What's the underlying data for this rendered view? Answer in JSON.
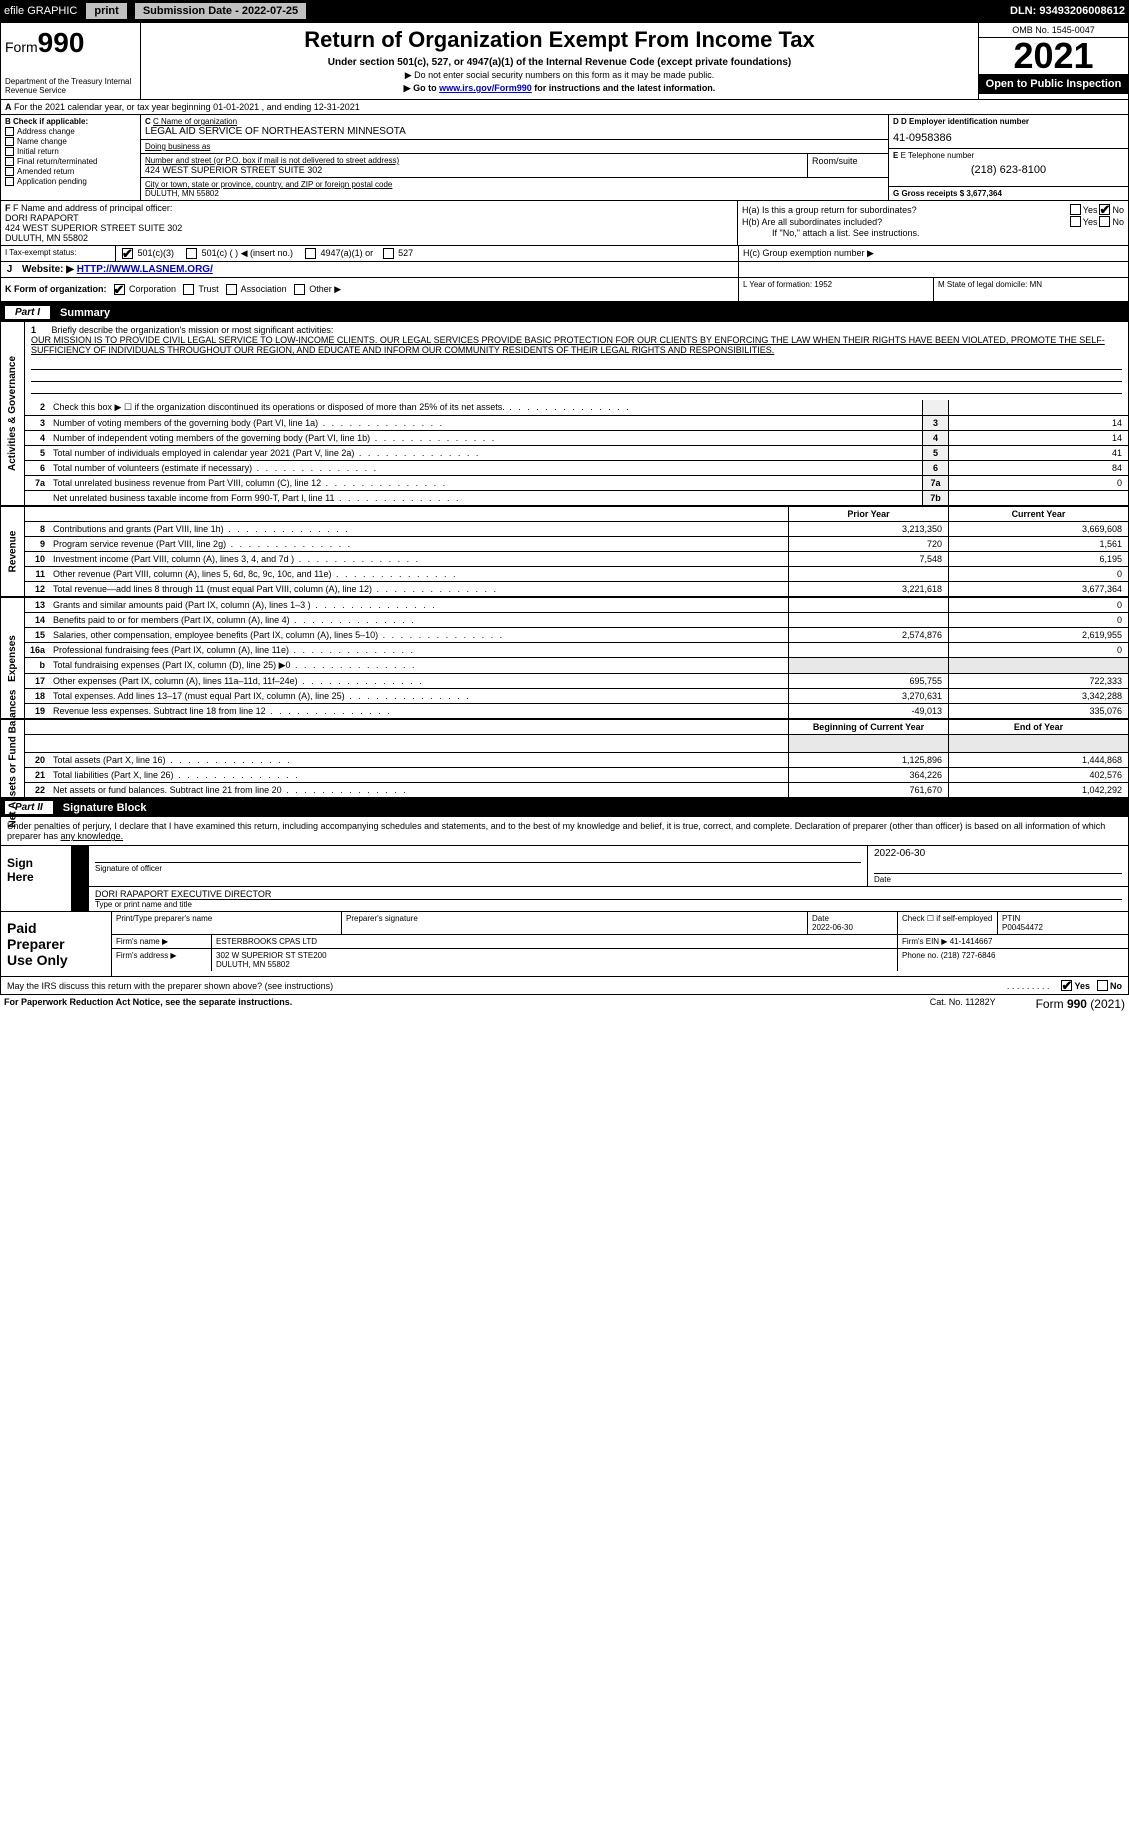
{
  "topbar": {
    "efile": "efile GRAPHIC",
    "print": "print",
    "subdate_lbl": "Submission Date - 2022-07-25",
    "dln": "DLN: 93493206008612"
  },
  "header": {
    "form": "Form",
    "num": "990",
    "dept": "Department of the Treasury Internal Revenue Service",
    "title": "Return of Organization Exempt From Income Tax",
    "sub1": "Under section 501(c), 527, or 4947(a)(1) of the Internal Revenue Code (except private foundations)",
    "sub2": "▶ Do not enter social security numbers on this form as it may be made public.",
    "sub3_pre": "▶ Go to ",
    "sub3_link": "www.irs.gov/Form990",
    "sub3_post": " for instructions and the latest information.",
    "omb": "OMB No. 1545-0047",
    "year": "2021",
    "open": "Open to Public Inspection"
  },
  "calyear": {
    "a": "A",
    "txt": "For the 2021 calendar year, or tax year beginning 01-01-2021    , and ending 12-31-2021"
  },
  "block_b": {
    "lbl": "B Check if applicable:",
    "items": [
      "Address change",
      "Name change",
      "Initial return",
      "Final return/terminated",
      "Amended return",
      "Application pending"
    ]
  },
  "block_c": {
    "c_lbl": "C Name of organization",
    "org": "LEGAL AID SERVICE OF NORTHEASTERN MINNESOTA",
    "dba_lbl": "Doing business as",
    "addr_lbl": "Number and street (or P.O. box if mail is not delivered to street address)",
    "room_lbl": "Room/suite",
    "addr": "424 WEST SUPERIOR STREET SUITE 302",
    "city_lbl": "City or town, state or province, country, and ZIP or foreign postal code",
    "city": "DULUTH, MN  55802"
  },
  "block_d": {
    "d_lbl": "D Employer identification number",
    "ein": "41-0958386",
    "e_lbl": "E Telephone number",
    "tel": "(218) 623-8100",
    "g_lbl": "G Gross receipts $ 3,677,364"
  },
  "block_f": {
    "f_lbl": "F Name and address of principal officer:",
    "name": "DORI RAPAPORT",
    "addr1": "424 WEST SUPERIOR STREET SUITE 302",
    "addr2": "DULUTH, MN  55802"
  },
  "block_h": {
    "ha": "H(a)  Is this a group return for subordinates?",
    "hb": "H(b)  Are all subordinates included?",
    "hb2": "If \"No,\" attach a list. See instructions.",
    "hc": "H(c)  Group exemption number ▶",
    "yes": "Yes",
    "no": "No"
  },
  "row_i": {
    "lbl": "I   Tax-exempt status:",
    "opts": [
      "501(c)(3)",
      "501(c) (   ) ◀ (insert no.)",
      "4947(a)(1) or",
      "527"
    ]
  },
  "row_j": {
    "lbl": "J",
    "site_lbl": "Website: ▶",
    "site": "HTTP://WWW.LASNEM.ORG/"
  },
  "row_k": {
    "lbl": "K Form of organization:",
    "opts": [
      "Corporation",
      "Trust",
      "Association",
      "Other ▶"
    ],
    "l": "L Year of formation: 1952",
    "m": "M State of legal domicile: MN"
  },
  "part1": {
    "part": "Part I",
    "title": "Summary"
  },
  "mission": {
    "num": "1",
    "lbl": "Briefly describe the organization's mission or most significant activities:",
    "txt": "OUR MISSION IS TO PROVIDE CIVIL LEGAL SERVICE TO LOW-INCOME CLIENTS. OUR LEGAL SERVICES PROVIDE BASIC PROTECTION FOR OUR CLIENTS BY ENFORCING THE LAW WHEN THEIR RIGHTS HAVE BEEN VIOLATED, PROMOTE THE SELF-SUFFICIENCY OF INDIVIDUALS THROUGHOUT OUR REGION, AND EDUCATE AND INFORM OUR COMMUNITY RESIDENTS OF THEIR LEGAL RIGHTS AND RESPONSIBILITIES."
  },
  "vtabs": {
    "gov": "Activities & Governance",
    "rev": "Revenue",
    "exp": "Expenses",
    "net": "Net Assets or Fund Balances"
  },
  "lines_single": [
    {
      "n": "2",
      "lbl": "Check this box ▶ ☐  if the organization discontinued its operations or disposed of more than 25% of its net assets.",
      "sm": "",
      "val": ""
    },
    {
      "n": "3",
      "lbl": "Number of voting members of the governing body (Part VI, line 1a)",
      "sm": "3",
      "val": "14"
    },
    {
      "n": "4",
      "lbl": "Number of independent voting members of the governing body (Part VI, line 1b)",
      "sm": "4",
      "val": "14"
    },
    {
      "n": "5",
      "lbl": "Total number of individuals employed in calendar year 2021 (Part V, line 2a)",
      "sm": "5",
      "val": "41"
    },
    {
      "n": "6",
      "lbl": "Total number of volunteers (estimate if necessary)",
      "sm": "6",
      "val": "84"
    },
    {
      "n": "7a",
      "lbl": "Total unrelated business revenue from Part VIII, column (C), line 12",
      "sm": "7a",
      "val": "0"
    },
    {
      "n": "",
      "lbl": "Net unrelated business taxable income from Form 990-T, Part I, line 11",
      "sm": "7b",
      "val": ""
    }
  ],
  "hdr_prior": "Prior Year",
  "hdr_curr": "Current Year",
  "lines_rev": [
    {
      "n": "8",
      "lbl": "Contributions and grants (Part VIII, line 1h)",
      "p": "3,213,350",
      "c": "3,669,608"
    },
    {
      "n": "9",
      "lbl": "Program service revenue (Part VIII, line 2g)",
      "p": "720",
      "c": "1,561"
    },
    {
      "n": "10",
      "lbl": "Investment income (Part VIII, column (A), lines 3, 4, and 7d )",
      "p": "7,548",
      "c": "6,195"
    },
    {
      "n": "11",
      "lbl": "Other revenue (Part VIII, column (A), lines 5, 6d, 8c, 9c, 10c, and 11e)",
      "p": "",
      "c": "0"
    },
    {
      "n": "12",
      "lbl": "Total revenue—add lines 8 through 11 (must equal Part VIII, column (A), line 12)",
      "p": "3,221,618",
      "c": "3,677,364"
    }
  ],
  "lines_exp": [
    {
      "n": "13",
      "lbl": "Grants and similar amounts paid (Part IX, column (A), lines 1–3 )",
      "p": "",
      "c": "0"
    },
    {
      "n": "14",
      "lbl": "Benefits paid to or for members (Part IX, column (A), line 4)",
      "p": "",
      "c": "0"
    },
    {
      "n": "15",
      "lbl": "Salaries, other compensation, employee benefits (Part IX, column (A), lines 5–10)",
      "p": "2,574,876",
      "c": "2,619,955"
    },
    {
      "n": "16a",
      "lbl": "Professional fundraising fees (Part IX, column (A), line 11e)",
      "p": "",
      "c": "0"
    },
    {
      "n": "b",
      "lbl": "Total fundraising expenses (Part IX, column (D), line 25) ▶0",
      "p": "__shade__",
      "c": "__shade__"
    },
    {
      "n": "17",
      "lbl": "Other expenses (Part IX, column (A), lines 11a–11d, 11f–24e)",
      "p": "695,755",
      "c": "722,333"
    },
    {
      "n": "18",
      "lbl": "Total expenses. Add lines 13–17 (must equal Part IX, column (A), line 25)",
      "p": "3,270,631",
      "c": "3,342,288"
    },
    {
      "n": "19",
      "lbl": "Revenue less expenses. Subtract line 18 from line 12",
      "p": "-49,013",
      "c": "335,076"
    }
  ],
  "hdr_beg": "Beginning of Current Year",
  "hdr_end": "End of Year",
  "lines_net": [
    {
      "n": "20",
      "lbl": "Total assets (Part X, line 16)",
      "p": "1,125,896",
      "c": "1,444,868"
    },
    {
      "n": "21",
      "lbl": "Total liabilities (Part X, line 26)",
      "p": "364,226",
      "c": "402,576"
    },
    {
      "n": "22",
      "lbl": "Net assets or fund balances. Subtract line 21 from line 20",
      "p": "761,670",
      "c": "1,042,292"
    }
  ],
  "part2": {
    "part": "Part II",
    "title": "Signature Block"
  },
  "sig": {
    "intro": "Under penalties of perjury, I declare that I have examined this return, including accompanying schedules and statements, and to the best of my knowledge and belief, it is true, correct, and complete. Declaration of preparer (other than officer) is based on all information of which preparer has ",
    "intro_u": "any knowledge.",
    "sign": "Sign",
    "here": "Here",
    "sig_lbl": "Signature of officer",
    "date_lbl": "Date",
    "date": "2022-06-30",
    "name": "DORI RAPAPORT  EXECUTIVE DIRECTOR",
    "name_lbl": "Type or print name and title"
  },
  "paid": {
    "title1": "Paid",
    "title2": "Preparer",
    "title3": "Use Only",
    "h_name": "Print/Type preparer's name",
    "h_sig": "Preparer's signature",
    "h_date": "Date",
    "date": "2022-06-30",
    "h_chk": "Check ☐ if self-employed",
    "h_ptin": "PTIN",
    "ptin": "P00454472",
    "firm_name_lbl": "Firm's name    ▶",
    "firm_name": "ESTERBROOKS CPAS LTD",
    "firm_ein_lbl": "Firm's EIN ▶",
    "firm_ein": "41-1414667",
    "firm_addr_lbl": "Firm's address ▶",
    "firm_addr1": "302 W SUPERIOR ST STE200",
    "firm_addr2": "DULUTH, MN  55802",
    "phone_lbl": "Phone no.",
    "phone": "(218) 727-6846"
  },
  "may": {
    "q": "May the IRS discuss this return with the preparer shown above? (see instructions)",
    "yes": "Yes",
    "no": "No"
  },
  "footer": {
    "left": "For Paperwork Reduction Act Notice, see the separate instructions.",
    "mid": "Cat. No. 11282Y",
    "form": "Form ",
    "num": "990",
    "yr": " (2021)"
  }
}
